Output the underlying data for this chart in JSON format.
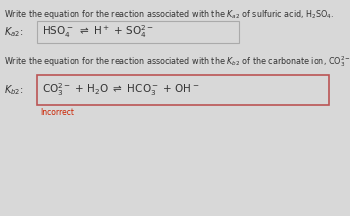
{
  "bg_color": "#d8d8d8",
  "title1": "Write the equation for the reaction associated with the $K_{a2}$ of sulfuric acid, H$_2$SO$_4$.",
  "label1": "$K_{a2}$:",
  "equation1": "HSO$_4^-$ $\\rightleftharpoons$ H$^+$ + SO$_4^{2-}$",
  "title2": "Write the equation for the reaction associated with the $K_{b2}$ of the carbonate ion, CO$_3^{2-}$.",
  "label2": "$K_{b2}$:",
  "equation2": "CO$_3^{2-}$ + H$_2$O $\\rightleftharpoons$ HCO$_3^-$ + OH$^-$",
  "incorrect_text": "Incorrect",
  "incorrect_color": "#cc2200",
  "box_edge_color": "#bb5555",
  "box_face_color": "#d8d8d8",
  "text_color": "#333333",
  "title_fontsize": 5.8,
  "label_fontsize": 7.0,
  "eq_fontsize": 7.5,
  "incorrect_fontsize": 5.5
}
